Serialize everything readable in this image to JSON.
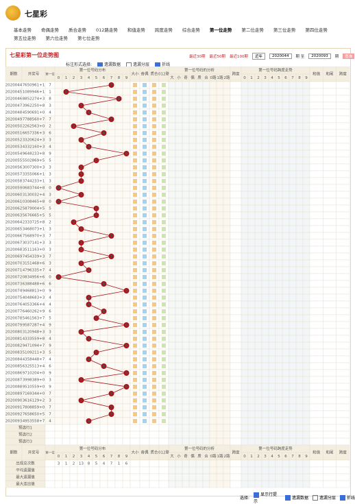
{
  "header": {
    "site": "七星彩"
  },
  "nav": [
    [
      "基本走势",
      "奇偶走势",
      "质合走势",
      "012路走势",
      "和值走势",
      "跨度走势",
      "综合走势",
      "第一位走势",
      "第二位走势",
      "第三位走势",
      "第四位走势"
    ],
    [
      "第五位走势",
      "第六位走势",
      "第七位走势"
    ]
  ],
  "panel": {
    "title": "七星彩第一位走势图",
    "links": [
      "最近30期",
      "最近50期",
      "最近100期"
    ],
    "select": "近年",
    "from": "2020044",
    "mid": "期 至",
    "to": "2020093",
    "end": "期",
    "button": "查询"
  },
  "options": {
    "label": "标注形式选择:",
    "items": [
      "遗漏数据",
      "遗漏分层",
      "折线"
    ]
  },
  "table": {
    "headers": {
      "period": "期数",
      "draw": "开奖号",
      "first": "第一位",
      "chart": "第一位号码分布",
      "mid": [
        "大小",
        "奇偶",
        "质合",
        "012路"
      ],
      "analysis": "第一位号码的分析",
      "analysis_items": [
        "大",
        "小",
        "奇",
        "偶",
        "质",
        "合",
        "0路",
        "1路",
        "2路"
      ],
      "span": "跨度",
      "span_chart": "第一位号码跨度走势",
      "right": [
        "和值",
        "和尾",
        "跨度"
      ]
    },
    "digits": [
      0,
      1,
      2,
      3,
      4,
      5,
      6,
      7,
      8,
      9
    ],
    "rows": [
      [
        "2020044",
        "7650961+1",
        7
      ],
      [
        "2020045",
        "1089946+1",
        1
      ],
      [
        "2020046",
        "8852274+3",
        8
      ],
      [
        "2020047",
        "3962250+8",
        3
      ],
      [
        "2020048",
        "4590691+0",
        4
      ],
      [
        "2020049",
        "7788560+7",
        7
      ],
      [
        "2020050",
        "2262563+0",
        2
      ],
      [
        "2020051",
        "6657336+3",
        6
      ],
      [
        "2020052",
        "3320624+3",
        3
      ],
      [
        "2020053",
        "4332160+3",
        4
      ],
      [
        "2020054",
        "9648233+8",
        9
      ],
      [
        "2020055",
        "5502869+5",
        5
      ],
      [
        "2020056",
        "3007300+3",
        3
      ],
      [
        "2020057",
        "3355066+1",
        3
      ],
      [
        "2020058",
        "3744233+1",
        3
      ],
      [
        "2020059",
        "0683744+8",
        0
      ],
      [
        "2020060",
        "3130032+4",
        3
      ],
      [
        "2020061",
        "0308465+8",
        0
      ],
      [
        "2020062",
        "5879004+5",
        5
      ],
      [
        "2020063",
        "5676665+5",
        5
      ],
      [
        "2020064",
        "2333725+8",
        2
      ],
      [
        "2020065",
        "3468073+1",
        3
      ],
      [
        "2020066",
        "7568970+3",
        7
      ],
      [
        "2020067",
        "3037141+3",
        3
      ],
      [
        "2020068",
        "3511163+0",
        3
      ],
      [
        "2020069",
        "7454339+3",
        7
      ],
      [
        "2020070",
        "3151468+6",
        3
      ],
      [
        "2020071",
        "4796335+7",
        4
      ],
      [
        "2020072",
        "0834956+6",
        0
      ],
      [
        "2020073",
        "6388488+6",
        6
      ],
      [
        "2020074",
        "9468813+0",
        9
      ],
      [
        "2020075",
        "4048683+3",
        4
      ],
      [
        "2020076",
        "4053366+4",
        4
      ],
      [
        "2020077",
        "6460262+9",
        6
      ],
      [
        "2020078",
        "5461563+7",
        5
      ],
      [
        "2020079",
        "9587287+4",
        9
      ],
      [
        "2020080",
        "3120948+3",
        3
      ],
      [
        "2020081",
        "4333559+8",
        4
      ],
      [
        "2020082",
        "9471094+7",
        9
      ],
      [
        "2020083",
        "5109211+3",
        5
      ],
      [
        "2020084",
        "4358448+7",
        4
      ],
      [
        "2020085",
        "6325513+4",
        6
      ],
      [
        "2020086",
        "9710204+0",
        9
      ],
      [
        "2020087",
        "3998389+0",
        3
      ],
      [
        "2020088",
        "9510559+0",
        9
      ],
      [
        "2020089",
        "7169344+0",
        7
      ],
      [
        "2020090",
        "3616129+2",
        3
      ],
      [
        "2020091",
        "7808859+0",
        7
      ],
      [
        "2020092",
        "7658650+5",
        7
      ],
      [
        "2020093",
        "4953558+7",
        4
      ]
    ],
    "preselect": [
      "预选行1",
      "预选行2",
      "预选行3"
    ],
    "stats": {
      "labels": [
        "出现总次数",
        "平均遗漏值",
        "最大遗漏值",
        "最大连出值"
      ],
      "counts": [
        3,
        1,
        2,
        13,
        8,
        5,
        4,
        7,
        1,
        6
      ]
    }
  },
  "footer": {
    "label": "选择:",
    "items": [
      "显示行提示",
      "遗漏数据",
      "遗漏分层",
      "折线"
    ]
  }
}
